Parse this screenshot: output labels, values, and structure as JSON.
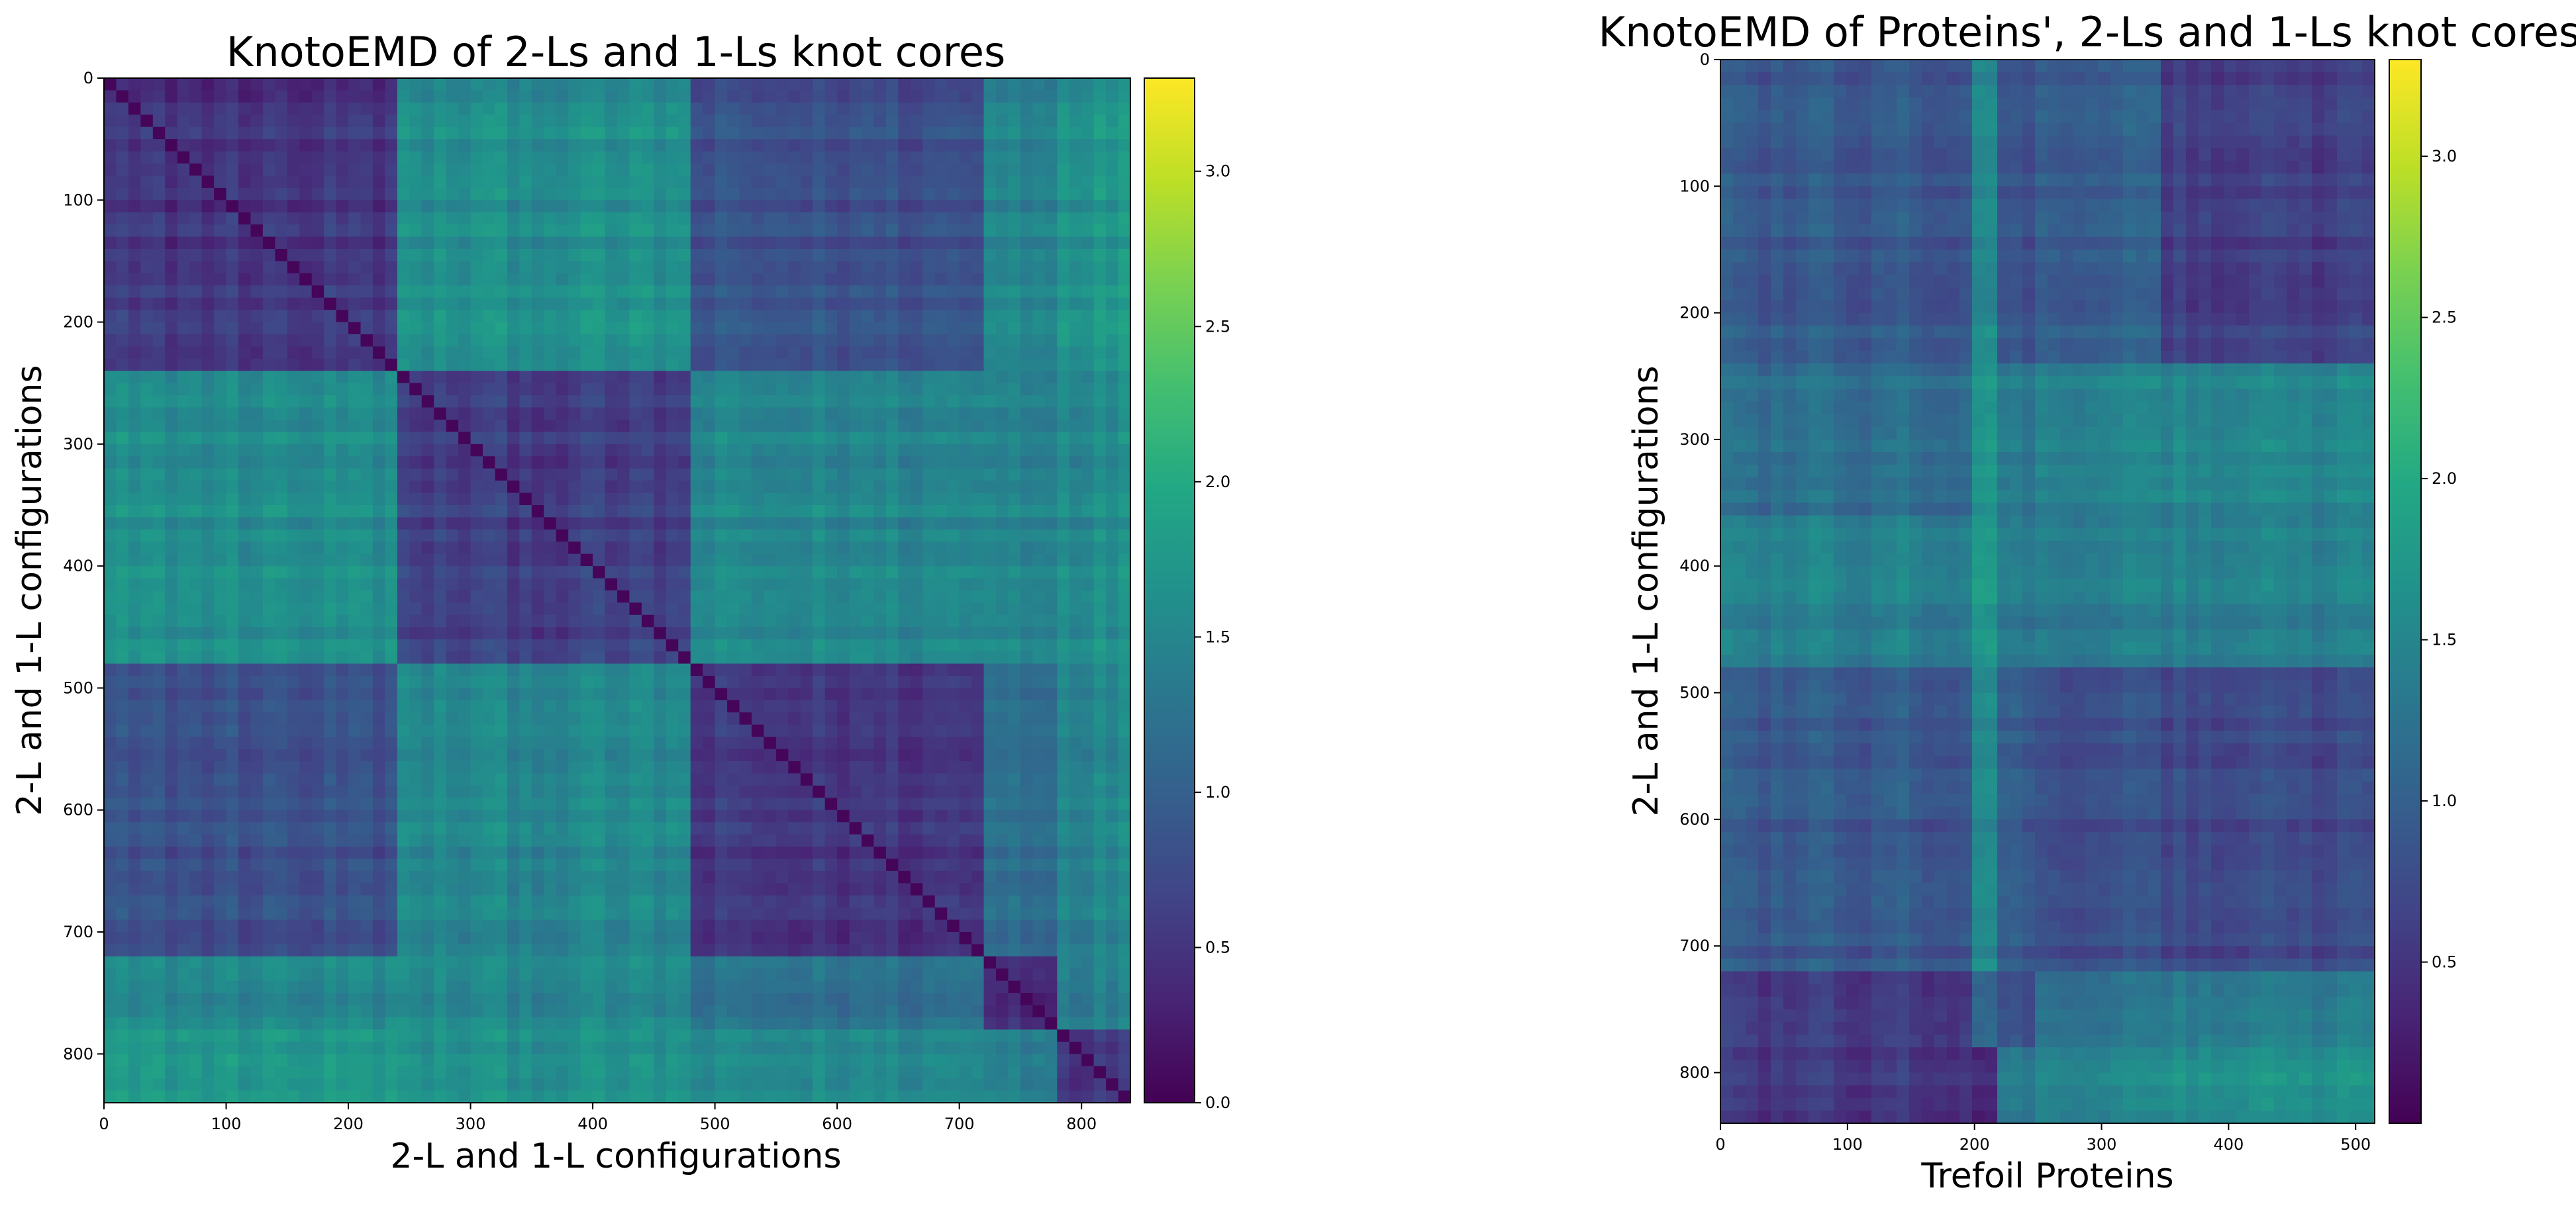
{
  "chart_data": [
    {
      "type": "heatmap",
      "title": "KnotoEMD of 2-Ls and 1-Ls knot cores",
      "xlabel": "2-L and 1-L configurations",
      "ylabel": "2-L and 1-L configurations",
      "xlim": [
        0,
        840
      ],
      "ylim": [
        840,
        0
      ],
      "xticks": [
        0,
        100,
        200,
        300,
        400,
        500,
        600,
        700,
        800
      ],
      "yticks": [
        0,
        100,
        200,
        300,
        400,
        500,
        600,
        700,
        800
      ],
      "colormap": "viridis",
      "clim": [
        0.0,
        3.3
      ],
      "colorbar_ticks": [
        "0.0",
        "0.5",
        "1.0",
        "1.5",
        "2.0",
        "2.5",
        "3.0"
      ],
      "colorbar_tick_values": [
        0.0,
        0.5,
        1.0,
        1.5,
        2.0,
        2.5,
        3.0
      ],
      "block_boundaries": [
        0,
        240,
        480,
        720,
        780,
        840
      ],
      "block_mean_values": [
        [
          0.5,
          1.6,
          0.8,
          1.5,
          1.7
        ],
        [
          1.6,
          0.6,
          1.5,
          1.5,
          1.6
        ],
        [
          0.8,
          1.5,
          0.5,
          1.2,
          1.5
        ],
        [
          1.5,
          1.5,
          1.2,
          0.4,
          1.4
        ],
        [
          1.7,
          1.6,
          1.5,
          1.4,
          0.5
        ]
      ]
    },
    {
      "type": "heatmap",
      "title": "KnotoEMD of Proteins', 2-Ls and 1-Ls knot cores",
      "xlabel": "Trefoil Proteins",
      "ylabel": "2-L and 1-L configurations",
      "xlim": [
        0,
        515
      ],
      "ylim": [
        840,
        0
      ],
      "xticks": [
        0,
        100,
        200,
        300,
        400,
        500
      ],
      "yticks": [
        0,
        100,
        200,
        300,
        400,
        500,
        600,
        700,
        800
      ],
      "colormap": "viridis",
      "clim": [
        0.0,
        3.3
      ],
      "colorbar_ticks": [
        "0.5",
        "1.0",
        "1.5",
        "2.0",
        "2.5",
        "3.0"
      ],
      "colorbar_tick_values": [
        0.5,
        1.0,
        1.5,
        2.0,
        2.5,
        3.0
      ],
      "row_boundaries": [
        0,
        240,
        360,
        480,
        720,
        780,
        840
      ],
      "column_boundaries": [
        0,
        100,
        200,
        220,
        250,
        345,
        375,
        515
      ],
      "block_mean_values": [
        [
          0.9,
          0.9,
          1.6,
          0.8,
          1.0,
          0.6,
          0.6
        ],
        [
          1.2,
          1.2,
          1.8,
          1.3,
          1.5,
          1.5,
          1.5
        ],
        [
          1.4,
          1.4,
          1.8,
          1.3,
          1.4,
          1.4,
          1.4
        ],
        [
          0.9,
          0.9,
          1.6,
          0.9,
          0.8,
          0.7,
          0.7
        ],
        [
          0.6,
          0.6,
          1.2,
          0.8,
          1.3,
          1.4,
          1.4
        ],
        [
          0.5,
          0.5,
          0.4,
          1.3,
          1.5,
          1.6,
          1.6
        ]
      ]
    }
  ]
}
